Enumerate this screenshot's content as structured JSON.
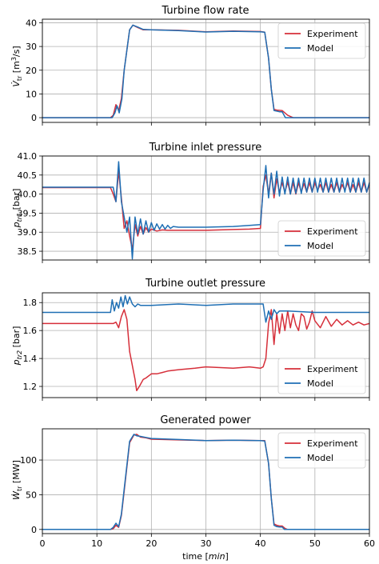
{
  "colors": {
    "experiment": "#d62f3a",
    "model": "#1f6fb4",
    "grid": "#b0b0b0"
  },
  "x_axis": {
    "label_prefix": "time [",
    "label_unit": "min",
    "label_suffix": "]",
    "range": [
      0,
      60
    ],
    "ticks": [
      0,
      10,
      20,
      30,
      40,
      50,
      60
    ],
    "tick_labels": [
      "0",
      "10",
      "20",
      "30",
      "40",
      "50",
      "60"
    ]
  },
  "chart_data": [
    {
      "type": "line",
      "title": "Turbine flow rate",
      "ylabel": "V̇tr [m³/s]",
      "ylim": [
        -2,
        41.5
      ],
      "yticks": [
        0,
        10,
        20,
        30,
        40
      ],
      "ytick_labels": [
        "0",
        "10",
        "20",
        "30",
        "40"
      ],
      "grid": true,
      "legend": "top-right",
      "series": [
        {
          "name": "Experiment",
          "color": "#d62f3a",
          "x": [
            0,
            12.5,
            13.0,
            13.5,
            14.0,
            14.5,
            15.0,
            16.0,
            16.6,
            17.5,
            18.5,
            20,
            25,
            30,
            35,
            40,
            40.8,
            41.5,
            42.0,
            42.5,
            43.0,
            44.0,
            45.0,
            46.0,
            60
          ],
          "y": [
            0,
            0,
            1.0,
            5.5,
            3.0,
            8.0,
            20.0,
            37.0,
            39.0,
            38.0,
            37.0,
            37.0,
            36.8,
            36.2,
            36.5,
            36.3,
            36.0,
            25.0,
            12.0,
            3.5,
            3.2,
            3.0,
            1.0,
            0,
            0
          ]
        },
        {
          "name": "Model",
          "color": "#1f6fb4",
          "x": [
            0,
            12.8,
            13.3,
            13.7,
            14.1,
            14.6,
            15.0,
            16.0,
            16.6,
            17.5,
            18.5,
            20,
            25,
            30,
            35,
            40,
            40.8,
            41.5,
            42.0,
            42.5,
            43.5,
            44.0,
            44.6,
            60
          ],
          "y": [
            0,
            0,
            2.0,
            5.0,
            2.0,
            8.0,
            20.0,
            37.0,
            39.0,
            38.2,
            37.2,
            37.0,
            36.7,
            36.1,
            36.4,
            36.2,
            36.0,
            25.0,
            12.0,
            3.0,
            2.5,
            2.5,
            0,
            0
          ]
        }
      ]
    },
    {
      "type": "line",
      "title": "Turbine inlet pressure",
      "ylabel": "pₜᵣ₁ [bar]",
      "ylim": [
        38.27,
        41.0
      ],
      "yticks": [
        38.5,
        39.0,
        39.5,
        40.0,
        40.5,
        41.0
      ],
      "ytick_labels": [
        "38.5",
        "39.0",
        "39.5",
        "40.0",
        "40.5",
        "41.0"
      ],
      "grid": true,
      "legend": "bottom-right",
      "series": [
        {
          "name": "Experiment",
          "color": "#d62f3a",
          "x": [
            0,
            12.0,
            12.5,
            13.0,
            13.5,
            14.0,
            14.5,
            15.0,
            15.5,
            16.0,
            16.5,
            17.0,
            17.5,
            18.0,
            18.5,
            19.0,
            19.5,
            20.0,
            21.0,
            22.0,
            23.0,
            25,
            30,
            35,
            38,
            40,
            40.5,
            41.0,
            41.5,
            42.0,
            42.5,
            43.0,
            43.5,
            44.0,
            44.5,
            45.0,
            45.5,
            46.0,
            46.5,
            47.0,
            47.5,
            48.0,
            48.5,
            49.0,
            49.5,
            50.0,
            50.5,
            51.0,
            51.5,
            52.0,
            52.5,
            53.0,
            53.5,
            54.0,
            54.5,
            55.0,
            55.5,
            56.0,
            56.5,
            57.0,
            57.5,
            58.0,
            58.5,
            59.0,
            59.5,
            60.0
          ],
          "y": [
            40.17,
            40.17,
            40.17,
            40.0,
            39.8,
            40.6,
            39.9,
            39.1,
            39.3,
            38.9,
            38.55,
            39.2,
            38.9,
            39.15,
            38.95,
            39.12,
            39.0,
            39.08,
            39.03,
            39.06,
            39.05,
            39.05,
            39.05,
            39.07,
            39.08,
            39.1,
            40.2,
            40.5,
            40.0,
            40.55,
            39.9,
            40.4,
            40.05,
            40.3,
            40.05,
            40.32,
            40.0,
            40.3,
            40.0,
            40.3,
            40.05,
            40.28,
            40.05,
            40.3,
            40.05,
            40.3,
            40.1,
            40.25,
            40.05,
            40.3,
            40.05,
            40.25,
            40.05,
            40.3,
            40.05,
            40.25,
            40.1,
            40.3,
            40.05,
            40.25,
            40.05,
            40.3,
            40.05,
            40.3,
            40.05,
            40.25
          ]
        },
        {
          "name": "Model",
          "color": "#1f6fb4",
          "x": [
            0,
            12.5,
            13.0,
            13.5,
            14.0,
            14.5,
            15.0,
            15.5,
            16.0,
            16.5,
            17.0,
            17.5,
            18.0,
            18.5,
            19.0,
            19.5,
            20.0,
            20.5,
            21.0,
            21.5,
            22.0,
            22.5,
            23.0,
            23.5,
            24.0,
            25,
            30,
            35,
            38,
            40,
            40.5,
            41.0,
            41.5,
            42.0,
            42.5,
            43.0,
            43.5,
            44.0,
            44.5,
            45.0,
            45.5,
            46.0,
            46.5,
            47.0,
            47.5,
            48.0,
            48.5,
            49.0,
            49.5,
            50.0,
            50.5,
            51.0,
            51.5,
            52.0,
            52.5,
            53.0,
            53.5,
            54.0,
            54.5,
            55.0,
            55.5,
            56.0,
            56.5,
            57.0,
            57.5,
            58.0,
            58.5,
            59.0,
            59.5,
            60.0
          ],
          "y": [
            40.18,
            40.18,
            40.18,
            39.8,
            40.85,
            39.8,
            39.4,
            39.0,
            39.4,
            38.3,
            39.4,
            38.95,
            39.35,
            38.95,
            39.3,
            39.0,
            39.25,
            39.05,
            39.22,
            39.08,
            39.2,
            39.08,
            39.18,
            39.1,
            39.15,
            39.13,
            39.13,
            39.15,
            39.18,
            39.2,
            40.1,
            40.75,
            39.9,
            40.55,
            40.0,
            40.6,
            39.95,
            40.45,
            40.0,
            40.45,
            40.0,
            40.42,
            40.02,
            40.42,
            40.02,
            40.42,
            40.05,
            40.42,
            40.05,
            40.42,
            40.05,
            40.42,
            40.05,
            40.42,
            40.05,
            40.42,
            40.05,
            40.42,
            40.05,
            40.42,
            40.05,
            40.42,
            40.05,
            40.42,
            40.05,
            40.42,
            40.05,
            40.42,
            40.05,
            40.3
          ]
        }
      ]
    },
    {
      "type": "line",
      "title": "Turbine outlet pressure",
      "ylabel": "pₜᵣ₂ [bar]",
      "ylim": [
        1.12,
        1.87
      ],
      "yticks": [
        1.2,
        1.4,
        1.6,
        1.8
      ],
      "ytick_labels": [
        "1.2",
        "1.4",
        "1.6",
        "1.8"
      ],
      "grid": true,
      "legend": "bottom-right",
      "series": [
        {
          "name": "Experiment",
          "color": "#d62f3a",
          "x": [
            0,
            12.5,
            13.0,
            13.5,
            14.0,
            14.5,
            15.0,
            15.5,
            16.0,
            16.5,
            17.0,
            17.3,
            17.8,
            18.5,
            19.0,
            20.0,
            21.0,
            22.0,
            23.0,
            25,
            28,
            30,
            35,
            38,
            40,
            40.5,
            41.0,
            41.5,
            42.0,
            42.5,
            43.0,
            43.5,
            44.0,
            44.5,
            45.0,
            45.5,
            46.0,
            46.5,
            47.0,
            47.5,
            48.0,
            48.5,
            49.0,
            49.5,
            50.0,
            51.0,
            52.0,
            53.0,
            54.0,
            55.0,
            56.0,
            57.0,
            58.0,
            59.0,
            60.0
          ],
          "y": [
            1.65,
            1.65,
            1.65,
            1.66,
            1.62,
            1.7,
            1.75,
            1.68,
            1.45,
            1.35,
            1.25,
            1.17,
            1.2,
            1.25,
            1.26,
            1.29,
            1.29,
            1.3,
            1.31,
            1.32,
            1.33,
            1.34,
            1.33,
            1.34,
            1.33,
            1.34,
            1.4,
            1.65,
            1.75,
            1.5,
            1.72,
            1.58,
            1.72,
            1.6,
            1.74,
            1.62,
            1.72,
            1.64,
            1.6,
            1.72,
            1.7,
            1.61,
            1.66,
            1.74,
            1.67,
            1.62,
            1.7,
            1.63,
            1.68,
            1.64,
            1.67,
            1.64,
            1.66,
            1.64,
            1.65
          ]
        },
        {
          "name": "Model",
          "color": "#1f6fb4",
          "x": [
            0,
            12.5,
            12.8,
            13.2,
            13.6,
            14.0,
            14.4,
            14.8,
            15.2,
            15.6,
            16.0,
            16.5,
            17.0,
            17.5,
            18.0,
            20,
            25,
            30,
            35,
            39,
            40.5,
            41.0,
            41.5,
            42.0,
            42.5,
            43.0,
            43.5,
            44.0,
            44.5,
            45,
            50,
            55,
            60
          ],
          "y": [
            1.73,
            1.73,
            1.82,
            1.74,
            1.8,
            1.76,
            1.84,
            1.77,
            1.85,
            1.79,
            1.84,
            1.79,
            1.77,
            1.79,
            1.78,
            1.78,
            1.79,
            1.78,
            1.79,
            1.79,
            1.79,
            1.66,
            1.74,
            1.68,
            1.75,
            1.72,
            1.74,
            1.74,
            1.74,
            1.74,
            1.73,
            1.73,
            1.73
          ]
        }
      ]
    },
    {
      "type": "line",
      "title": "Generated power",
      "ylabel": "Ẇtr [MW]",
      "ylim": [
        -6,
        145
      ],
      "yticks": [
        0,
        50,
        100
      ],
      "ytick_labels": [
        "0",
        "50",
        "100"
      ],
      "grid": true,
      "legend": "top-right",
      "series": [
        {
          "name": "Experiment",
          "color": "#d62f3a",
          "x": [
            0,
            12.5,
            13.0,
            13.5,
            14.0,
            14.5,
            15.0,
            16.0,
            16.8,
            17.3,
            18.0,
            19.0,
            20,
            25,
            30,
            35,
            40,
            40.8,
            41.5,
            42.0,
            42.5,
            43.0,
            43.5,
            44.0,
            44.6,
            45.0,
            60
          ],
          "y": [
            0,
            0,
            1.0,
            6.0,
            3.0,
            20.0,
            55.0,
            125.0,
            136.0,
            137.0,
            133.0,
            132.0,
            130.0,
            129.0,
            128.0,
            128.5,
            128.0,
            128.0,
            95.0,
            45.0,
            8.0,
            6.0,
            5.0,
            5.0,
            1.0,
            0,
            0
          ]
        },
        {
          "name": "Model",
          "color": "#1f6fb4",
          "x": [
            0,
            12.5,
            13.0,
            13.5,
            14.0,
            14.5,
            15.0,
            16.0,
            16.8,
            17.3,
            18.0,
            19.0,
            20,
            25,
            30,
            35,
            40,
            40.8,
            41.5,
            42.0,
            42.5,
            43.0,
            43.5,
            44.0,
            44.4,
            45.0,
            60
          ],
          "y": [
            0,
            0,
            3.0,
            9.0,
            4.0,
            22.0,
            58.0,
            127.0,
            137.0,
            135.0,
            134.0,
            132.5,
            131.0,
            129.5,
            128.0,
            128.5,
            128.0,
            127.5,
            95.0,
            45.0,
            6.0,
            4.0,
            3.5,
            3.5,
            0,
            0,
            0
          ]
        }
      ]
    }
  ]
}
